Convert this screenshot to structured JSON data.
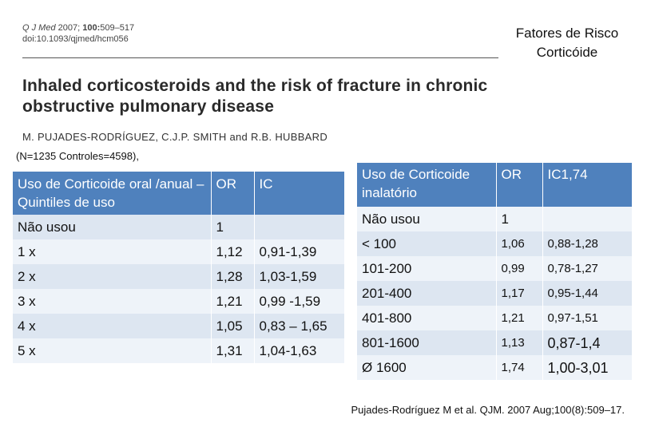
{
  "journal": {
    "name": "Q J Med",
    "year": "2007;",
    "volume": "100:",
    "pages": "509–517",
    "doi": "doi:10.1093/qjmed/hcm056"
  },
  "slide_title_line1": "Fatores de Risco",
  "slide_title_line2": "Corticóide",
  "paper_title_line1": "Inhaled corticosteroids and the risk of fracture in chronic",
  "paper_title_line2": "obstructive pulmonary disease",
  "authors": "M. PUJADES-RODRÍGUEZ, C.J.P. SMITH and R.B. HUBBARD",
  "study_note": "(N=1235  Controles=4598),",
  "left_table": {
    "headers": [
      "Uso de Corticoide oral /anual – Quintiles de uso",
      "OR",
      "IC"
    ],
    "rows": [
      [
        "Não usou",
        "1",
        ""
      ],
      [
        "1 x",
        "1,12",
        "0,91-1,39"
      ],
      [
        "2 x",
        "1,28",
        "1,03-1,59"
      ],
      [
        "3 x",
        "1,21",
        "0,99 -1,59"
      ],
      [
        "4 x",
        "1,05",
        "0,83 – 1,65"
      ],
      [
        "5 x",
        "1,31",
        "1,04-1,63"
      ]
    ]
  },
  "right_table": {
    "headers": [
      "Uso de Corticoide inalatório",
      "OR",
      "IC1,74"
    ],
    "rows": [
      [
        "Não usou",
        "1",
        ""
      ],
      [
        "< 100",
        "1,06",
        "0,88-1,28"
      ],
      [
        "101-200",
        "0,99",
        "0,78-1,27"
      ],
      [
        "201-400",
        "1,17",
        "0,95-1,44"
      ],
      [
        "401-800",
        "1,21",
        "0,97-1,51"
      ],
      [
        "801-1600",
        "1,13",
        "0,87-1,4"
      ],
      [
        "Ø  1600",
        "1,74",
        "1,00-3,01"
      ]
    ]
  },
  "citation": "Pujades-Rodríguez M et al. QJM. 2007 Aug;100(8):509–17."
}
